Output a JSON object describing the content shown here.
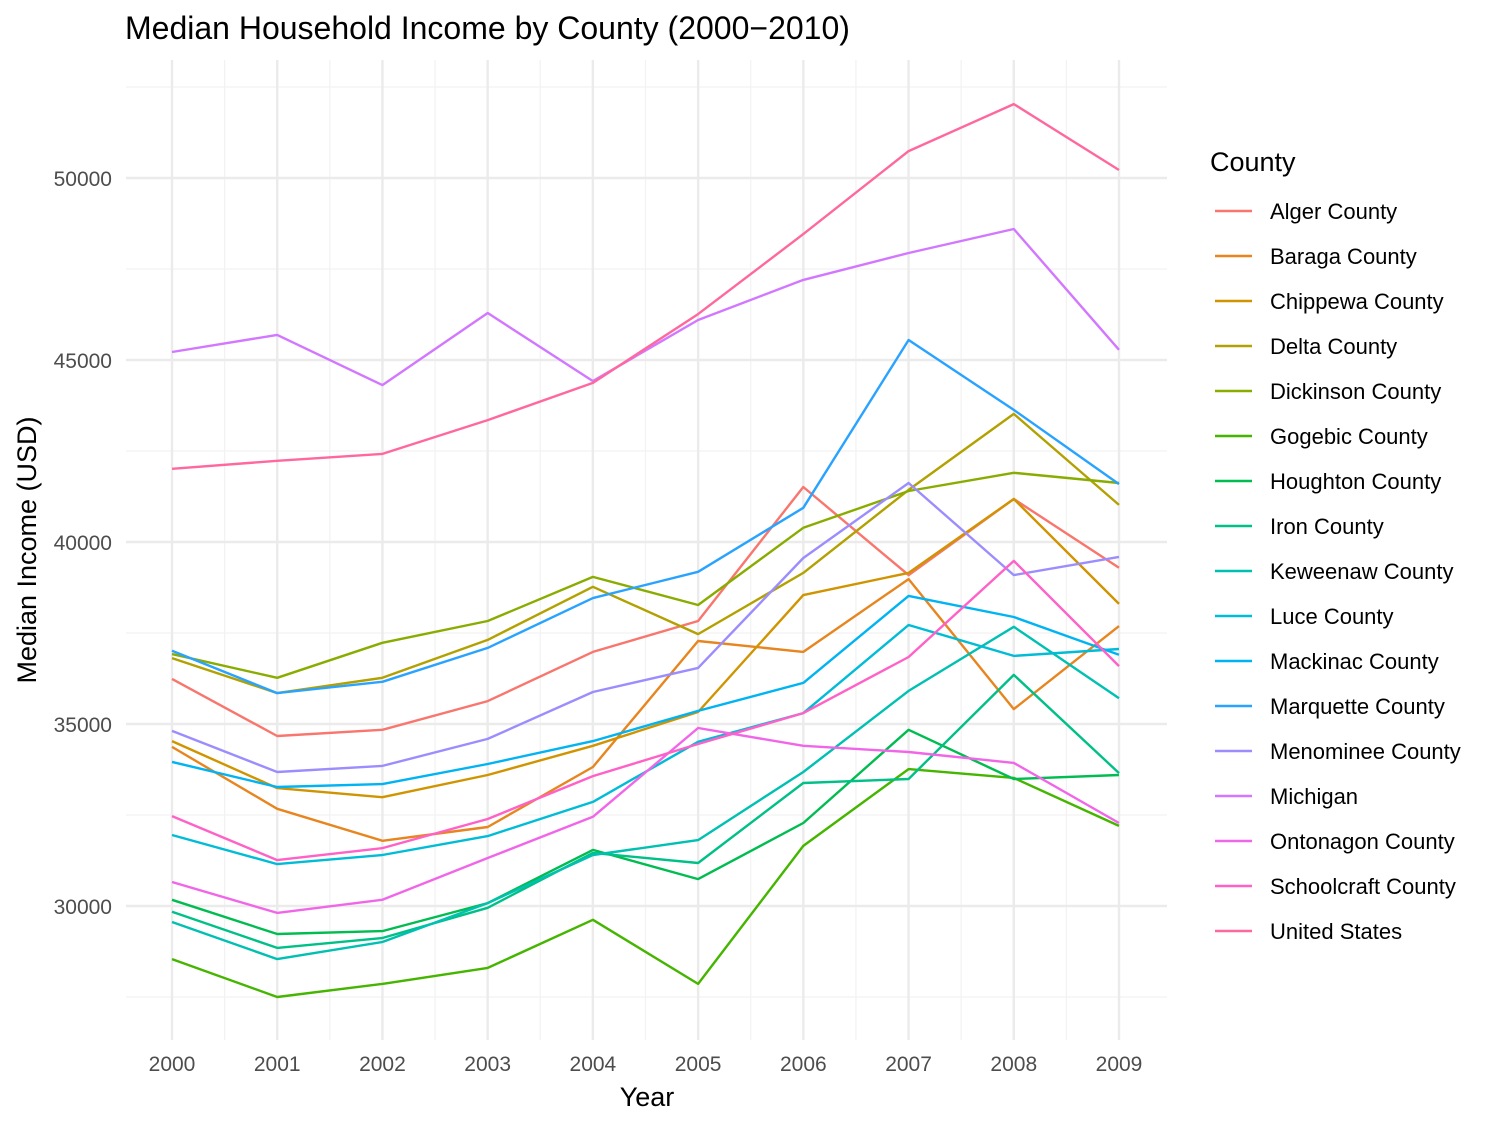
{
  "chart_data": {
    "type": "line",
    "title": "Median Household Income by County (2000−2010)",
    "xlabel": "Year",
    "ylabel": "Median Income (USD)",
    "x": [
      2000,
      2001,
      2002,
      2003,
      2004,
      2005,
      2006,
      2007,
      2008,
      2009
    ],
    "x_ticks": [
      "2000",
      "2001",
      "2002",
      "2003",
      "2004",
      "2005",
      "2006",
      "2007",
      "2008",
      "2009"
    ],
    "y_ticks": [
      "30000",
      "35000",
      "40000",
      "45000",
      "50000"
    ],
    "ylim": [
      26300,
      53400
    ],
    "grid": true,
    "legend": {
      "title": "County",
      "position": "right"
    },
    "series": [
      {
        "name": "Alger County",
        "color": "#F8766D",
        "values": [
          36240,
          34670,
          34840,
          35630,
          36980,
          37830,
          41510,
          39090,
          41180,
          39290
        ]
      },
      {
        "name": "Baraga County",
        "color": "#E7851E",
        "values": [
          34370,
          32670,
          31790,
          32170,
          33820,
          37280,
          36980,
          38980,
          35410,
          37690
        ]
      },
      {
        "name": "Chippewa County",
        "color": "#D09400",
        "values": [
          34530,
          33240,
          32990,
          33600,
          34400,
          35330,
          38540,
          39150,
          41180,
          38300
        ]
      },
      {
        "name": "Delta County",
        "color": "#B2A100",
        "values": [
          36810,
          35850,
          36270,
          37310,
          38770,
          37470,
          39150,
          41430,
          43520,
          41020
        ]
      },
      {
        "name": "Dickinson County",
        "color": "#89AC00",
        "values": [
          36920,
          36270,
          37230,
          37830,
          39040,
          38270,
          40390,
          41400,
          41900,
          41620
        ]
      },
      {
        "name": "Gogebic County",
        "color": "#45B500",
        "values": [
          28540,
          27500,
          27860,
          28300,
          29620,
          27860,
          31650,
          33760,
          33520,
          32200
        ]
      },
      {
        "name": "Houghton County",
        "color": "#00BC51",
        "values": [
          30170,
          29230,
          29310,
          30080,
          31540,
          30740,
          32280,
          34840,
          33490,
          33600
        ]
      },
      {
        "name": "Iron County",
        "color": "#00C087",
        "values": [
          29840,
          28850,
          29120,
          29950,
          31460,
          31180,
          33380,
          33490,
          36350,
          33650
        ]
      },
      {
        "name": "Keweenaw County",
        "color": "#00C0B2",
        "values": [
          29560,
          28540,
          29010,
          30080,
          31400,
          31810,
          33680,
          35910,
          37670,
          35710
        ]
      },
      {
        "name": "Luce County",
        "color": "#00BCD6",
        "values": [
          31950,
          31150,
          31400,
          31920,
          32860,
          34510,
          35300,
          37720,
          36870,
          37060
        ]
      },
      {
        "name": "Mackinac County",
        "color": "#00B3F2",
        "values": [
          33960,
          33270,
          33350,
          33900,
          34530,
          35360,
          36130,
          38520,
          37940,
          36900
        ]
      },
      {
        "name": "Marquette County",
        "color": "#29A3FF",
        "values": [
          37010,
          35850,
          36160,
          37090,
          38460,
          39180,
          40940,
          45550,
          43630,
          41590
        ]
      },
      {
        "name": "Menominee County",
        "color": "#9C8DFF",
        "values": [
          34810,
          33680,
          33850,
          34590,
          35880,
          36540,
          39560,
          41620,
          39090,
          39590
        ]
      },
      {
        "name": "Michigan",
        "color": "#D277FF",
        "values": [
          45220,
          45690,
          44310,
          46290,
          44420,
          46100,
          47200,
          47940,
          48600,
          45280
        ]
      },
      {
        "name": "Ontonagon County",
        "color": "#F166E8",
        "values": [
          30660,
          29810,
          30170,
          31320,
          32450,
          34890,
          34400,
          34230,
          33930,
          32280
        ]
      },
      {
        "name": "Schoolcraft County",
        "color": "#FF61C7",
        "values": [
          32470,
          31260,
          31590,
          32390,
          33570,
          34450,
          35300,
          36840,
          39480,
          36590
        ]
      },
      {
        "name": "United States",
        "color": "#FF689E",
        "values": [
          42010,
          42230,
          42420,
          43350,
          44370,
          46260,
          48460,
          50740,
          52030,
          50220
        ]
      }
    ]
  }
}
